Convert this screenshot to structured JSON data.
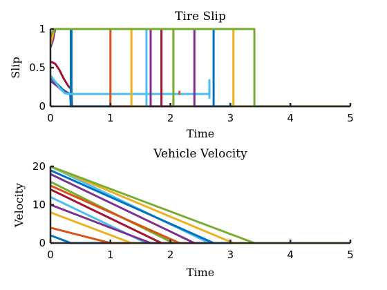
{
  "colors": [
    "#0072BD",
    "#D95319",
    "#EDB120",
    "#7E2F8E",
    "#77AC30",
    "#4DBEEE",
    "#A2142F"
  ],
  "chart_data": [
    {
      "type": "line",
      "title": "Tire Slip",
      "xlabel": "Time",
      "ylabel": "Slip",
      "xlim": [
        0,
        5
      ],
      "ylim": [
        0,
        1
      ],
      "xticks": [
        "0",
        "1",
        "2",
        "3",
        "4",
        "5"
      ],
      "yticks": [
        "0",
        "0.5",
        "1"
      ],
      "grid": false,
      "series": [
        {
          "color": "#A2142F",
          "values": [
            [
              0,
              0.58
            ],
            [
              0.08,
              0.55
            ],
            [
              0.15,
              0.47
            ],
            [
              0.22,
              0.36
            ],
            [
              0.3,
              0.26
            ],
            [
              0.35,
              0.22
            ],
            [
              0.36,
              0
            ]
          ]
        },
        {
          "color": "#0072BD",
          "values": [
            [
              0,
              0.37
            ],
            [
              0.1,
              0.3
            ],
            [
              0.2,
              0.22
            ],
            [
              0.3,
              0.17
            ],
            [
              0.33,
              0.16
            ],
            [
              0.34,
              0
            ],
            [
              0.34,
              1
            ],
            [
              0.35,
              1
            ],
            [
              0.35,
              0
            ]
          ]
        },
        {
          "color": "#7E2F8E",
          "values": [
            [
              0,
              0.33
            ],
            [
              0.1,
              0.27
            ],
            [
              0.2,
              0.2
            ],
            [
              0.28,
              0.17
            ],
            [
              0.32,
              0.16
            ]
          ]
        },
        {
          "color": "#4DBEEE",
          "values": [
            [
              0,
              0.4
            ],
            [
              0.08,
              0.32
            ],
            [
              0.16,
              0.23
            ],
            [
              0.24,
              0.17
            ],
            [
              0.3,
              0.16
            ],
            [
              2.65,
              0.16
            ]
          ]
        },
        {
          "color": "#4DBEEE",
          "values": [
            [
              2.65,
              0.1
            ],
            [
              2.65,
              0.35
            ]
          ]
        },
        {
          "color": "#D95319",
          "values": [
            [
              2.15,
              0.15
            ],
            [
              2.15,
              0.2
            ]
          ]
        },
        {
          "color": "#7E2F8E",
          "values": [
            [
              0,
              0.76
            ],
            [
              0.04,
              0.85
            ],
            [
              0.08,
              1
            ]
          ]
        },
        {
          "color": "#EDB120",
          "values": [
            [
              0,
              0.8
            ],
            [
              0.03,
              0.88
            ],
            [
              0.06,
              1
            ]
          ]
        },
        {
          "color": "#77AC30",
          "values": [
            [
              0,
              0.9
            ],
            [
              0.06,
              1
            ]
          ]
        },
        {
          "color": "#D95319",
          "values": [
            [
              0.06,
              1
            ],
            [
              1.0,
              1
            ],
            [
              1.0,
              0
            ],
            [
              1.35,
              0
            ]
          ]
        },
        {
          "color": "#EDB120",
          "values": [
            [
              0.06,
              1
            ],
            [
              1.35,
              1
            ],
            [
              1.35,
              0
            ],
            [
              1.6,
              0
            ]
          ]
        },
        {
          "color": "#4DBEEE",
          "values": [
            [
              0.06,
              1
            ],
            [
              1.6,
              1
            ],
            [
              1.6,
              0
            ],
            [
              1.67,
              0
            ]
          ]
        },
        {
          "color": "#7E2F8E",
          "values": [
            [
              0.06,
              1
            ],
            [
              1.67,
              1
            ],
            [
              1.67,
              0
            ],
            [
              1.85,
              0
            ]
          ]
        },
        {
          "color": "#A2142F",
          "values": [
            [
              0.06,
              1
            ],
            [
              1.85,
              1
            ],
            [
              1.85,
              0
            ],
            [
              2.05,
              0
            ]
          ]
        },
        {
          "color": "#77AC30",
          "values": [
            [
              0.06,
              1
            ],
            [
              2.05,
              1
            ],
            [
              2.05,
              0
            ],
            [
              2.4,
              0
            ]
          ]
        },
        {
          "color": "#7E2F8E",
          "values": [
            [
              0.06,
              1
            ],
            [
              2.4,
              1
            ],
            [
              2.4,
              0
            ],
            [
              2.72,
              0
            ]
          ]
        },
        {
          "color": "#0072BD",
          "values": [
            [
              0.06,
              1
            ],
            [
              2.72,
              1
            ],
            [
              2.72,
              0
            ],
            [
              3.05,
              0
            ]
          ]
        },
        {
          "color": "#EDB120",
          "values": [
            [
              0.06,
              1
            ],
            [
              3.05,
              1
            ],
            [
              3.05,
              0
            ],
            [
              3.4,
              0
            ]
          ]
        },
        {
          "color": "#77AC30",
          "values": [
            [
              0.06,
              1
            ],
            [
              3.4,
              1
            ],
            [
              3.4,
              0
            ],
            [
              5,
              0
            ]
          ]
        },
        {
          "color": "#0072BD",
          "values": [
            [
              0.34,
              0
            ],
            [
              1.0,
              0
            ]
          ]
        }
      ]
    },
    {
      "type": "line",
      "title": "Vehicle Velocity",
      "xlabel": "Time",
      "ylabel": "Velocity",
      "xlim": [
        0,
        5
      ],
      "ylim": [
        0,
        20
      ],
      "xticks": [
        "0",
        "1",
        "2",
        "3",
        "4",
        "5"
      ],
      "yticks": [
        "0",
        "10",
        "20"
      ],
      "grid": false,
      "series": [
        {
          "color": "#0072BD",
          "values": [
            [
              0,
              2
            ],
            [
              0.34,
              0
            ],
            [
              1.0,
              0
            ]
          ]
        },
        {
          "color": "#D95319",
          "values": [
            [
              0,
              4
            ],
            [
              1.0,
              0
            ],
            [
              1.35,
              0
            ]
          ]
        },
        {
          "color": "#EDB120",
          "values": [
            [
              0,
              8
            ],
            [
              1.35,
              0
            ],
            [
              1.6,
              0
            ]
          ]
        },
        {
          "color": "#4DBEEE",
          "values": [
            [
              0,
              12
            ],
            [
              1.6,
              0
            ],
            [
              1.67,
              0
            ]
          ]
        },
        {
          "color": "#7E2F8E",
          "values": [
            [
              0,
              10
            ],
            [
              1.67,
              0
            ],
            [
              1.85,
              0
            ]
          ]
        },
        {
          "color": "#A2142F",
          "values": [
            [
              0,
              14
            ],
            [
              1.85,
              0
            ],
            [
              2.05,
              0
            ]
          ]
        },
        {
          "color": "#77AC30",
          "values": [
            [
              0,
              16
            ],
            [
              2.05,
              0
            ],
            [
              2.4,
              0
            ]
          ]
        },
        {
          "color": "#D95319",
          "values": [
            [
              0,
              15
            ],
            [
              2.15,
              0
            ],
            [
              2.4,
              0
            ]
          ]
        },
        {
          "color": "#7E2F8E",
          "values": [
            [
              0,
              18
            ],
            [
              2.4,
              0
            ],
            [
              2.72,
              0
            ]
          ]
        },
        {
          "color": "#4DBEEE",
          "values": [
            [
              0,
              20
            ],
            [
              2.65,
              0
            ],
            [
              2.72,
              0
            ]
          ]
        },
        {
          "color": "#0072BD",
          "values": [
            [
              0,
              19
            ],
            [
              2.72,
              0
            ],
            [
              3.05,
              0
            ]
          ]
        },
        {
          "color": "#EDB120",
          "values": [
            [
              0,
              20
            ],
            [
              3.05,
              0
            ],
            [
              3.4,
              0
            ]
          ]
        },
        {
          "color": "#77AC30",
          "values": [
            [
              0,
              20
            ],
            [
              3.4,
              0
            ],
            [
              5,
              0
            ]
          ]
        }
      ]
    }
  ]
}
